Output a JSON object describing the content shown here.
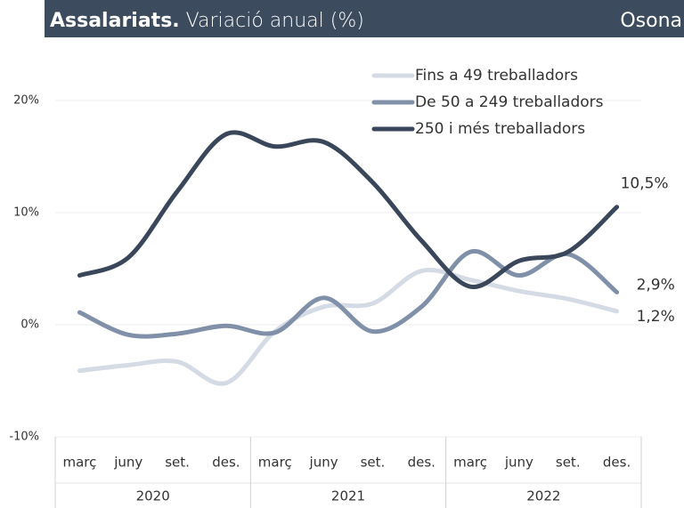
{
  "chart_data": {
    "type": "line",
    "title": "Assalariats.",
    "subtitle": "Variació anual (%)",
    "region": "Osona",
    "categories": [
      "març",
      "juny",
      "set.",
      "des.",
      "març",
      "juny",
      "set.",
      "des.",
      "març",
      "juny",
      "set.",
      "des."
    ],
    "groups": [
      "2020",
      "2021",
      "2022"
    ],
    "series": [
      {
        "name": "Fins a 49 treballadors",
        "color": "#d5dbe5",
        "values": [
          -4.1,
          -3.6,
          -3.3,
          -5.2,
          -0.6,
          1.6,
          1.9,
          4.8,
          4.0,
          3.0,
          2.3,
          1.2
        ],
        "value_labels": [
          null,
          null,
          null,
          null,
          null,
          null,
          null,
          null,
          null,
          null,
          null,
          "1,2%"
        ]
      },
      {
        "name": "De 50 a 249 treballadors",
        "color": "#7f90a8",
        "values": [
          1.1,
          -0.9,
          -0.8,
          -0.1,
          -0.7,
          2.4,
          -0.6,
          1.6,
          6.5,
          4.4,
          6.3,
          2.9
        ],
        "value_labels": [
          null,
          null,
          null,
          null,
          null,
          null,
          null,
          null,
          null,
          null,
          null,
          "2,9%"
        ]
      },
      {
        "name": "250 i més treballadors",
        "color": "#3a475a",
        "values": [
          4.4,
          6.0,
          11.9,
          17.0,
          15.9,
          16.3,
          12.7,
          7.5,
          3.4,
          5.7,
          6.5,
          10.5
        ],
        "value_labels": [
          null,
          null,
          null,
          null,
          null,
          null,
          null,
          null,
          null,
          null,
          null,
          "10,5%"
        ]
      }
    ],
    "ylim": [
      -10,
      20
    ],
    "yticks": [
      {
        "value": -10,
        "label": "-10%"
      },
      {
        "value": 0,
        "label": "0%"
      },
      {
        "value": 10,
        "label": "10%"
      },
      {
        "value": 20,
        "label": "20%"
      }
    ],
    "grid": true,
    "legend": "upper right"
  }
}
